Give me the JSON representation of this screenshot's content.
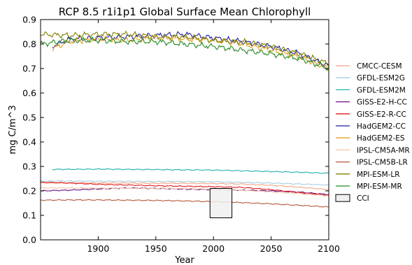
{
  "chart_data": {
    "type": "line",
    "title": "RCP 8.5 r1i1p1 Global Surface Mean Chlorophyll",
    "xlabel": "Year",
    "ylabel": "mg C/m^3",
    "xlim": [
      1850,
      2100
    ],
    "ylim": [
      0.0,
      0.9
    ],
    "xticks": [
      1900,
      1950,
      2000,
      2050,
      2100
    ],
    "yticks": [
      0.0,
      0.1,
      0.2,
      0.3,
      0.4,
      0.5,
      0.6,
      0.7,
      0.8,
      0.9
    ],
    "grid": false,
    "legend_position": "right",
    "series": [
      {
        "name": "CMCC-CESM",
        "color": "#f4a582",
        "x": [
          1850,
          1875,
          1900,
          1925,
          1950,
          1975,
          2000,
          2025,
          2050,
          2075,
          2100
        ],
        "values": [
          0.232,
          0.233,
          0.232,
          0.232,
          0.231,
          0.231,
          0.23,
          0.228,
          0.223,
          0.215,
          0.205
        ]
      },
      {
        "name": "GFDL-ESM2G",
        "color": "#a6cee3",
        "x": [
          1850,
          1875,
          1900,
          1925,
          1950,
          1975,
          2000,
          2025,
          2050,
          2075,
          2100
        ],
        "values": [
          0.24,
          0.24,
          0.239,
          0.239,
          0.238,
          0.238,
          0.237,
          0.235,
          0.232,
          0.228,
          0.224
        ]
      },
      {
        "name": "GFDL-ESM2M",
        "color": "#20b2aa",
        "x": [
          1860,
          1875,
          1900,
          1925,
          1950,
          1975,
          2000,
          2025,
          2050,
          2075,
          2100
        ],
        "values": [
          0.288,
          0.288,
          0.289,
          0.288,
          0.287,
          0.286,
          0.285,
          0.282,
          0.279,
          0.276,
          0.272
        ]
      },
      {
        "name": "GISS-E2-H-CC",
        "color": "#6a0d83",
        "x": [
          1850,
          1875,
          1900,
          1925,
          1950,
          1975,
          2000,
          2025,
          2050,
          2075,
          2100
        ],
        "values": [
          0.2,
          0.203,
          0.208,
          0.212,
          0.21,
          0.207,
          0.205,
          0.203,
          0.2,
          0.195,
          0.185
        ]
      },
      {
        "name": "GISS-E2-R-CC",
        "color": "#e31a1c",
        "x": [
          1850,
          1875,
          1900,
          1925,
          1950,
          1975,
          2000,
          2025,
          2050,
          2075,
          2100
        ],
        "values": [
          0.236,
          0.232,
          0.227,
          0.224,
          0.221,
          0.219,
          0.217,
          0.214,
          0.205,
          0.193,
          0.182
        ]
      },
      {
        "name": "HadGEM2-CC",
        "color": "#1f1fa0",
        "x": [
          1860,
          1875,
          1900,
          1925,
          1950,
          1975,
          2000,
          2025,
          2050,
          2075,
          2100
        ],
        "values": [
          0.79,
          0.82,
          0.825,
          0.83,
          0.835,
          0.84,
          0.825,
          0.81,
          0.79,
          0.76,
          0.71
        ]
      },
      {
        "name": "HadGEM2-ES",
        "color": "#e0a020",
        "x": [
          1860,
          1875,
          1900,
          1925,
          1950,
          1975,
          2000,
          2025,
          2050,
          2075,
          2100
        ],
        "values": [
          0.78,
          0.81,
          0.82,
          0.815,
          0.825,
          0.82,
          0.815,
          0.8,
          0.775,
          0.745,
          0.7
        ]
      },
      {
        "name": "IPSL-CM5A-MR",
        "color": "#f0c8a8",
        "x": [
          1850,
          1875,
          1900,
          1925,
          1950,
          1975,
          2000,
          2025,
          2050,
          2075,
          2100
        ],
        "values": [
          0.212,
          0.212,
          0.211,
          0.211,
          0.21,
          0.209,
          0.207,
          0.203,
          0.196,
          0.188,
          0.18
        ]
      },
      {
        "name": "IPSL-CM5B-LR",
        "color": "#b5573a",
        "x": [
          1850,
          1875,
          1900,
          1925,
          1950,
          1975,
          2000,
          2025,
          2050,
          2075,
          2100
        ],
        "values": [
          0.162,
          0.163,
          0.163,
          0.162,
          0.161,
          0.159,
          0.156,
          0.152,
          0.147,
          0.141,
          0.134
        ]
      },
      {
        "name": "MPI-ESM-LR",
        "color": "#808000",
        "x": [
          1850,
          1875,
          1900,
          1925,
          1950,
          1975,
          2000,
          2025,
          2050,
          2075,
          2100
        ],
        "values": [
          0.84,
          0.835,
          0.84,
          0.84,
          0.83,
          0.83,
          0.815,
          0.81,
          0.79,
          0.76,
          0.72
        ]
      },
      {
        "name": "MPI-ESM-MR",
        "color": "#228b22",
        "x": [
          1850,
          1875,
          1900,
          1925,
          1950,
          1975,
          2000,
          2025,
          2050,
          2075,
          2100
        ],
        "values": [
          0.8,
          0.815,
          0.815,
          0.81,
          0.81,
          0.8,
          0.79,
          0.775,
          0.76,
          0.74,
          0.7
        ]
      }
    ],
    "cci_box": {
      "name": "CCI",
      "x": [
        1997,
        2016
      ],
      "y": [
        0.09,
        0.21
      ],
      "fill": "#f0f0f0",
      "edge": "#000000"
    }
  }
}
